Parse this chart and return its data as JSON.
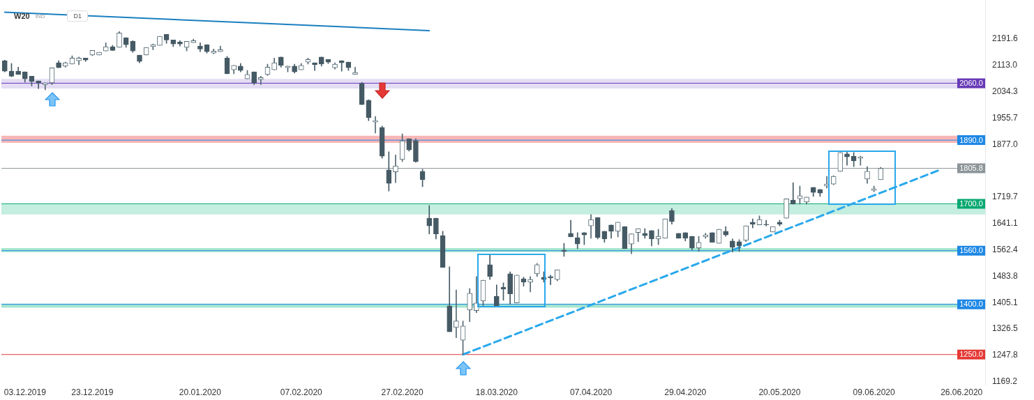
{
  "chart_data": {
    "type": "candlestick",
    "title": "W20",
    "subtitle": "IND",
    "annotations": [
      "D1"
    ],
    "categories": [
      null,
      null,
      null,
      "03.12.2019",
      null,
      null,
      null,
      null,
      null,
      null,
      null,
      null,
      null,
      "23.12.2019",
      null,
      null,
      null,
      null,
      null,
      null,
      null,
      null,
      null,
      null,
      null,
      null,
      null,
      null,
      null,
      "20.01.2020",
      null,
      null,
      null,
      null,
      null,
      null,
      null,
      null,
      null,
      null,
      null,
      null,
      null,
      null,
      "07.02.2020",
      null,
      null,
      null,
      null,
      null,
      null,
      null,
      null,
      null,
      null,
      null,
      null,
      null,
      null,
      "27.02.2020",
      null,
      null,
      null,
      null,
      null,
      null,
      null,
      null,
      null,
      null,
      null,
      null,
      null,
      "18.03.2020",
      null,
      null,
      null,
      null,
      null,
      null,
      null,
      null,
      null,
      null,
      null,
      null,
      null,
      "07.04.2020",
      null,
      null,
      null,
      null,
      null,
      null,
      null,
      null,
      null,
      null,
      null,
      null,
      null,
      "29.04.2020",
      null,
      null,
      null,
      null,
      null,
      null,
      null,
      null,
      null,
      null,
      null,
      null,
      null,
      "20.05.2020",
      null,
      null,
      null,
      null,
      null,
      null,
      null,
      null,
      null,
      null,
      null,
      null,
      null,
      "09.06.2020",
      null,
      null,
      null,
      null,
      null,
      null,
      null,
      null,
      null,
      null,
      null,
      null,
      "26.06.2020",
      null,
      null,
      null
    ],
    "ohlc": [
      [
        2127,
        2129,
        2094,
        2096
      ],
      [
        2096,
        2119,
        2079,
        2081
      ],
      [
        2096,
        2108,
        2086,
        2086
      ],
      [
        2094,
        2094,
        2063,
        2073
      ],
      [
        2081,
        2081,
        2052,
        2065
      ],
      [
        2067,
        2067,
        2044,
        2061
      ],
      [
        2056,
        2061,
        2040,
        2061
      ],
      [
        2061,
        2106,
        2056,
        2106
      ],
      [
        2121,
        2127,
        2106,
        2106
      ],
      [
        2111,
        2123,
        2108,
        2121
      ],
      [
        2117,
        2142,
        2117,
        2135
      ],
      [
        2127,
        2138,
        2115,
        2135
      ],
      [
        2135,
        2135,
        2125,
        2129
      ],
      [
        2144,
        2158,
        2142,
        2158
      ],
      [
        2144,
        2152,
        2144,
        2152
      ],
      [
        2156,
        2181,
        2156,
        2169
      ],
      [
        2169,
        2173,
        2158,
        2158
      ],
      [
        2167,
        2214,
        2167,
        2210
      ],
      [
        2196,
        2196,
        2167,
        2175
      ],
      [
        2185,
        2187,
        2152,
        2156
      ],
      [
        2144,
        2144,
        2121,
        2125
      ],
      [
        2144,
        2167,
        2144,
        2167
      ],
      [
        2169,
        2177,
        2160,
        2175
      ],
      [
        2173,
        2200,
        2173,
        2200
      ],
      [
        2206,
        2206,
        2179,
        2189
      ],
      [
        2189,
        2189,
        2169,
        2177
      ],
      [
        2183,
        2187,
        2171,
        2177
      ],
      [
        2167,
        2185,
        2156,
        2185
      ],
      [
        2181,
        2192,
        2181,
        2187
      ],
      [
        2171,
        2181,
        2154,
        2162
      ],
      [
        2175,
        2175,
        2150,
        2154
      ],
      [
        2150,
        2162,
        2148,
        2156
      ],
      [
        2154,
        2171,
        2154,
        2160
      ],
      [
        2135,
        2140,
        2088,
        2088
      ],
      [
        2100,
        2113,
        2088,
        2113
      ],
      [
        2111,
        2119,
        2094,
        2098
      ],
      [
        2073,
        2098,
        2073,
        2086
      ],
      [
        2094,
        2094,
        2056,
        2061
      ],
      [
        2071,
        2081,
        2056,
        2077
      ],
      [
        2086,
        2117,
        2083,
        2108
      ],
      [
        2100,
        2135,
        2100,
        2121
      ],
      [
        2138,
        2138,
        2108,
        2113
      ],
      [
        2106,
        2111,
        2094,
        2111
      ],
      [
        2111,
        2117,
        2090,
        2094
      ],
      [
        2100,
        2119,
        2100,
        2113
      ],
      [
        2123,
        2135,
        2117,
        2131
      ],
      [
        2121,
        2121,
        2098,
        2115
      ],
      [
        2138,
        2138,
        2111,
        2117
      ],
      [
        2131,
        2131,
        2119,
        2123
      ],
      [
        2106,
        2121,
        2102,
        2117
      ],
      [
        2127,
        2127,
        2096,
        2121
      ],
      [
        2123,
        2123,
        2098,
        2106
      ],
      [
        2086,
        2108,
        2086,
        2092
      ],
      [
        2059,
        2063,
        1996,
        1996
      ],
      [
        2009,
        2011,
        1948,
        1957
      ],
      [
        1944,
        1961,
        1911,
        1948
      ],
      [
        1928,
        1932,
        1836,
        1842
      ],
      [
        1801,
        1855,
        1738,
        1761
      ],
      [
        1795,
        1846,
        1763,
        1813
      ],
      [
        1832,
        1909,
        1826,
        1888
      ],
      [
        1894,
        1894,
        1857,
        1861
      ],
      [
        1888,
        1894,
        1824,
        1826
      ],
      [
        1797,
        1803,
        1751,
        1772
      ],
      [
        1657,
        1695,
        1610,
        1634
      ],
      [
        1657,
        1657,
        1595,
        1610
      ],
      [
        1605,
        1618,
        1510,
        1510
      ],
      [
        1395,
        1512,
        1318,
        1318
      ],
      [
        1331,
        1443,
        1300,
        1350
      ],
      [
        1293,
        1350,
        1250,
        1335
      ],
      [
        1383,
        1447,
        1348,
        1433
      ],
      [
        1381,
        1483,
        1375,
        1404
      ],
      [
        1410,
        1472,
        1393,
        1472
      ],
      [
        1518,
        1547,
        1474,
        1483
      ],
      [
        1424,
        1458,
        1393,
        1393
      ],
      [
        1451,
        1464,
        1412,
        1445
      ],
      [
        1491,
        1497,
        1400,
        1431
      ],
      [
        1404,
        1487,
        1404,
        1487
      ],
      [
        1476,
        1481,
        1454,
        1466
      ],
      [
        1466,
        1483,
        1437,
        1474
      ],
      [
        1491,
        1522,
        1483,
        1518
      ],
      [
        1481,
        1497,
        1466,
        1474
      ],
      [
        1483,
        1487,
        1458,
        1479
      ],
      [
        1474,
        1503,
        1470,
        1503
      ],
      [
        1562,
        1582,
        1543,
        1558
      ],
      [
        1612,
        1651,
        1601,
        1601
      ],
      [
        1599,
        1614,
        1566,
        1580
      ],
      [
        1614,
        1614,
        1578,
        1607
      ],
      [
        1634,
        1668,
        1597,
        1653
      ],
      [
        1659,
        1659,
        1595,
        1599
      ],
      [
        1618,
        1618,
        1585,
        1595
      ],
      [
        1637,
        1637,
        1597,
        1618
      ],
      [
        1618,
        1645,
        1601,
        1645
      ],
      [
        1632,
        1632,
        1566,
        1566
      ],
      [
        1580,
        1610,
        1551,
        1610
      ],
      [
        1614,
        1626,
        1587,
        1626
      ],
      [
        1612,
        1626,
        1597,
        1605
      ],
      [
        1620,
        1620,
        1574,
        1595
      ],
      [
        1595,
        1624,
        1578,
        1603
      ],
      [
        1597,
        1655,
        1597,
        1655
      ],
      [
        1680,
        1686,
        1639,
        1647
      ],
      [
        1612,
        1612,
        1597,
        1597
      ],
      [
        1614,
        1614,
        1589,
        1597
      ],
      [
        1603,
        1603,
        1562,
        1568
      ],
      [
        1568,
        1603,
        1558,
        1585
      ],
      [
        1601,
        1612,
        1597,
        1607
      ],
      [
        1614,
        1614,
        1585,
        1585
      ],
      [
        1582,
        1624,
        1582,
        1624
      ],
      [
        1618,
        1632,
        1603,
        1607
      ],
      [
        1589,
        1595,
        1556,
        1570
      ],
      [
        1587,
        1593,
        1558,
        1574
      ],
      [
        1591,
        1634,
        1587,
        1634
      ],
      [
        1645,
        1655,
        1628,
        1639
      ],
      [
        1637,
        1664,
        1637,
        1653
      ],
      [
        1639,
        1651,
        1634,
        1637
      ],
      [
        1616,
        1632,
        1616,
        1632
      ],
      [
        1645,
        1651,
        1634,
        1639
      ],
      [
        1657,
        1715,
        1657,
        1715
      ],
      [
        1711,
        1763,
        1699,
        1699
      ],
      [
        1715,
        1753,
        1699,
        1724
      ],
      [
        1705,
        1720,
        1699,
        1720
      ],
      [
        1749,
        1749,
        1722,
        1734
      ],
      [
        1743,
        1743,
        1722,
        1732
      ],
      [
        1753,
        1782,
        1747,
        1759
      ],
      [
        1759,
        1784,
        1757,
        1782
      ],
      [
        1797,
        1853,
        1797,
        1853
      ],
      [
        1849,
        1855,
        1815,
        1840
      ],
      [
        1842,
        1853,
        1811,
        1828
      ],
      [
        1836,
        1842,
        1815,
        1840
      ],
      [
        1774,
        1811,
        1761,
        1797
      ],
      [
        1740,
        1753,
        1736,
        1745
      ],
      [
        1772,
        1809,
        1772,
        1805.8
      ],
      null,
      null,
      null,
      null,
      null,
      null,
      null,
      null,
      null,
      null,
      null,
      null,
      null,
      null,
      null
    ],
    "series": [
      {
        "type": "line",
        "color": "#1a7fc0",
        "line_style": "solid",
        "values": [
          2272,
          null,
          null,
          null,
          null,
          null,
          null,
          null,
          null,
          null,
          null,
          null,
          null,
          null,
          null,
          null,
          null,
          null,
          null,
          null,
          null,
          null,
          null,
          null,
          null,
          null,
          null,
          null,
          null,
          null,
          null,
          null,
          null,
          null,
          null,
          null,
          null,
          null,
          null,
          null,
          null,
          null,
          null,
          null,
          null,
          null,
          null,
          null,
          null,
          null,
          null,
          null,
          null,
          null,
          null,
          null,
          null,
          null,
          null,
          null,
          null,
          null,
          null,
          2217,
          null,
          null,
          null,
          null,
          null,
          null,
          null,
          null,
          null,
          null,
          null,
          null,
          null,
          null,
          null,
          null,
          null,
          null,
          null,
          null,
          null,
          null,
          null,
          null,
          null,
          null,
          null,
          null,
          null,
          null,
          null,
          null,
          null,
          null,
          null,
          null,
          null,
          null,
          null,
          null,
          null,
          null,
          null,
          null,
          null,
          null,
          null,
          null,
          null,
          null,
          null,
          null,
          null,
          null,
          null,
          null,
          null,
          null,
          null,
          null,
          null,
          null,
          null,
          null,
          null,
          null,
          null,
          null,
          null,
          null,
          null,
          null,
          null,
          null,
          null,
          null,
          null,
          null,
          null,
          null,
          null,
          null
        ]
      },
      {
        "type": "line",
        "color": "#29a8ec",
        "line_style": "dashed",
        "values": [
          null,
          null,
          null,
          null,
          null,
          null,
          null,
          null,
          null,
          null,
          null,
          null,
          null,
          null,
          null,
          null,
          null,
          null,
          null,
          null,
          null,
          null,
          null,
          null,
          null,
          null,
          null,
          null,
          null,
          null,
          null,
          null,
          null,
          null,
          null,
          null,
          null,
          null,
          null,
          null,
          null,
          null,
          null,
          null,
          null,
          null,
          null,
          null,
          null,
          null,
          null,
          null,
          null,
          null,
          null,
          null,
          null,
          null,
          null,
          null,
          null,
          null,
          null,
          null,
          null,
          null,
          null,
          null,
          1250,
          null,
          null,
          null,
          null,
          null,
          null,
          null,
          null,
          null,
          null,
          null,
          null,
          null,
          null,
          null,
          null,
          null,
          null,
          null,
          null,
          null,
          null,
          null,
          null,
          null,
          null,
          null,
          null,
          null,
          null,
          null,
          null,
          null,
          null,
          null,
          null,
          null,
          null,
          null,
          null,
          null,
          null,
          null,
          null,
          null,
          null,
          null,
          null,
          null,
          null,
          null,
          null,
          null,
          null,
          null,
          null,
          null,
          null,
          null,
          null,
          null,
          null,
          null,
          null,
          null,
          null,
          null,
          null,
          null,
          null,
          1803,
          null,
          null,
          null,
          null,
          null,
          null
        ]
      }
    ],
    "ylim": [
      1160,
      2308
    ],
    "yticks": [
      1169.2,
      1247.8,
      1326.5,
      1405.1,
      1483.8,
      1562.4,
      1641.1,
      1719.7,
      {
        "value": 1877,
        "label": "1877.0"
      },
      1955.7,
      2034.3,
      {
        "value": 2113,
        "label": "2113.0"
      },
      2191.6
    ],
    "bands": [
      {
        "axis": "y",
        "from": 2044,
        "to": 2073,
        "color": "#e4ddf4"
      },
      {
        "axis": "y",
        "from": 1882,
        "to": 1903,
        "color": "#f8b6b6"
      },
      {
        "axis": "y",
        "from": 1668,
        "to": 1701,
        "color": "#c4eedf"
      },
      {
        "axis": "y",
        "from": 1556,
        "to": 1568,
        "color": "#a6e6cf"
      },
      {
        "axis": "y",
        "from": 1390,
        "to": 1402,
        "color": "#a6e6cf"
      }
    ],
    "ref_lines": [
      {
        "axis": "y",
        "value": 2060,
        "label": "2060.0",
        "color": "#673ab7"
      },
      {
        "axis": "y",
        "value": 1890,
        "label": "1890.0",
        "color": "#1e88e5"
      },
      {
        "axis": "y",
        "value": 1805.8,
        "label": "1805.8",
        "color": "#8d9599"
      },
      {
        "axis": "y",
        "value": 1700,
        "label": "1700.0",
        "color": "#08a871"
      },
      {
        "axis": "y",
        "value": 1560,
        "label": "1560.0",
        "color": "#1e88e5"
      },
      {
        "axis": "y",
        "value": 1400,
        "label": "1400.0",
        "color": "#1e88e5"
      },
      {
        "axis": "y",
        "value": 1250,
        "label": "1250.0",
        "color": "#e53935"
      }
    ],
    "grid": false,
    "legend": false
  }
}
